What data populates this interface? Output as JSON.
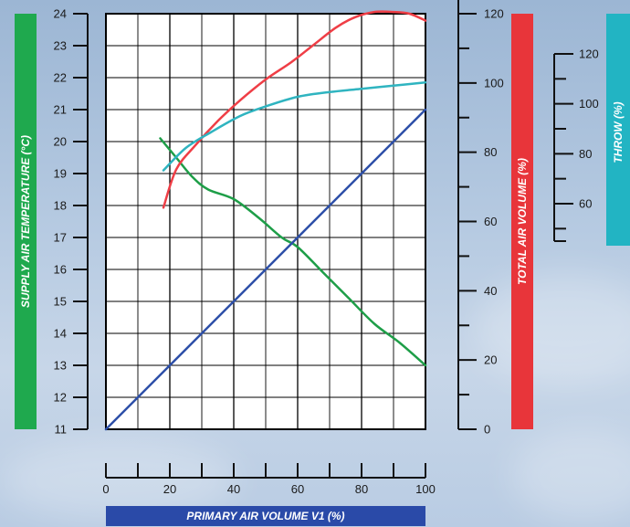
{
  "chart_data": {
    "type": "line",
    "x_axis": {
      "label": "PRIMARY AIR VOLUME V1 (%)",
      "range": [
        0,
        100
      ],
      "ticks": [
        0,
        20,
        40,
        60,
        80,
        100
      ],
      "tick_labels": [
        "0",
        "20",
        "40",
        "60",
        "80",
        "100"
      ],
      "color": "#2a4aa8"
    },
    "y_axes": {
      "supply_temp": {
        "label": "SUPPLY AIR TEMPERATURE (°C)",
        "range": [
          11,
          24
        ],
        "ticks": [
          11,
          12,
          13,
          14,
          15,
          16,
          17,
          18,
          19,
          20,
          21,
          22,
          23,
          24
        ],
        "tick_labels": [
          "11",
          "12",
          "13",
          "14",
          "15",
          "16",
          "17",
          "18",
          "19",
          "20",
          "21",
          "22",
          "23",
          "24"
        ],
        "color": "#1fa94e"
      },
      "total_air": {
        "label": "TOTAL AIR VOLUME (%)",
        "range": [
          0,
          120
        ],
        "ticks": [
          0,
          20,
          40,
          60,
          80,
          100,
          120
        ],
        "tick_labels": [
          "0",
          "20",
          "40",
          "60",
          "80",
          "100",
          "120"
        ],
        "color": "#e8353a"
      },
      "throw": {
        "label": "THROW (%)",
        "range": [
          45,
          120
        ],
        "ticks": [
          60,
          80,
          100,
          120
        ],
        "tick_labels": [
          "60",
          "80",
          "100",
          "120"
        ],
        "color": "#22b4c3"
      }
    },
    "grid": true,
    "series": [
      {
        "axis": "supply_temp",
        "color": "#1e9e48",
        "x": [
          17,
          22,
          27,
          32,
          40,
          48,
          55,
          60,
          68,
          76,
          84,
          92,
          100
        ],
        "y": [
          20.1,
          19.5,
          18.9,
          18.5,
          18.2,
          17.6,
          17.0,
          16.7,
          15.9,
          15.1,
          14.3,
          13.7,
          13.0
        ]
      },
      {
        "axis": "total_air",
        "color": "#ef3e46",
        "x": [
          18,
          22,
          28,
          35,
          42,
          50,
          58,
          65,
          72,
          78,
          84,
          90,
          95,
          100
        ],
        "y": [
          64,
          75,
          82,
          89,
          95,
          101,
          106,
          111,
          116,
          119,
          120.5,
          120.5,
          120,
          118
        ]
      },
      {
        "axis": "supply_temp",
        "color": "#2fb4c0",
        "x": [
          18,
          25,
          33,
          42,
          50,
          60,
          70,
          80,
          90,
          100
        ],
        "y": [
          19.1,
          19.8,
          20.3,
          20.8,
          21.1,
          21.4,
          21.55,
          21.65,
          21.75,
          21.85
        ]
      },
      {
        "axis": "supply_temp",
        "color": "#2d4fa8",
        "x": [
          0,
          100
        ],
        "y": [
          11,
          21
        ]
      }
    ]
  }
}
